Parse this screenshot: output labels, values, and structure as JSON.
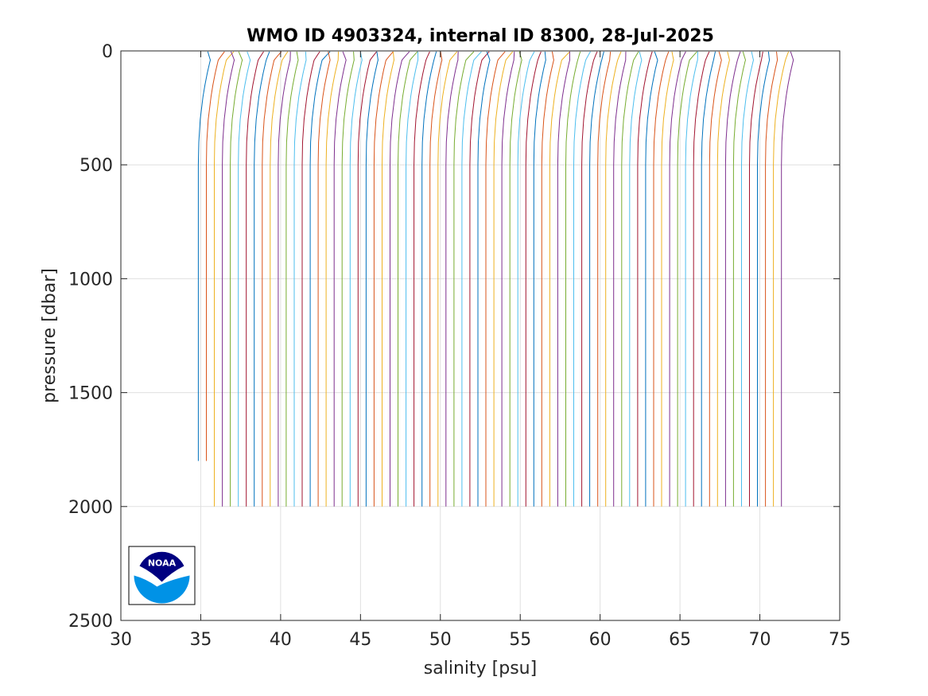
{
  "chart_data": {
    "type": "line",
    "title": "WMO ID 4903324, internal ID 8300, 28-Jul-2025",
    "xlabel": "salinity [psu]",
    "ylabel": "pressure [dbar]",
    "xlim": [
      30,
      75
    ],
    "ylim": [
      0,
      2500
    ],
    "y_reversed": true,
    "x_ticks": [
      "30",
      "35",
      "40",
      "45",
      "50",
      "55",
      "60",
      "65",
      "70",
      "75"
    ],
    "y_ticks": [
      "0",
      "500",
      "1000",
      "1500",
      "2000",
      "2500"
    ],
    "grid": true,
    "legend": "none",
    "profiles": {
      "count": 74,
      "first_deep_salinity": 34.85,
      "offset_per_profile": 0.5,
      "surface_salinity_shift": 0.9,
      "max_pressure": 2000
    },
    "colors": [
      "#0072BD",
      "#D95319",
      "#EDB120",
      "#7E2F8E",
      "#77AC30",
      "#4DBEEE",
      "#A2142F"
    ],
    "logo": {
      "text": "NOAA",
      "navy": "#000080",
      "blue": "#0092e6"
    }
  }
}
